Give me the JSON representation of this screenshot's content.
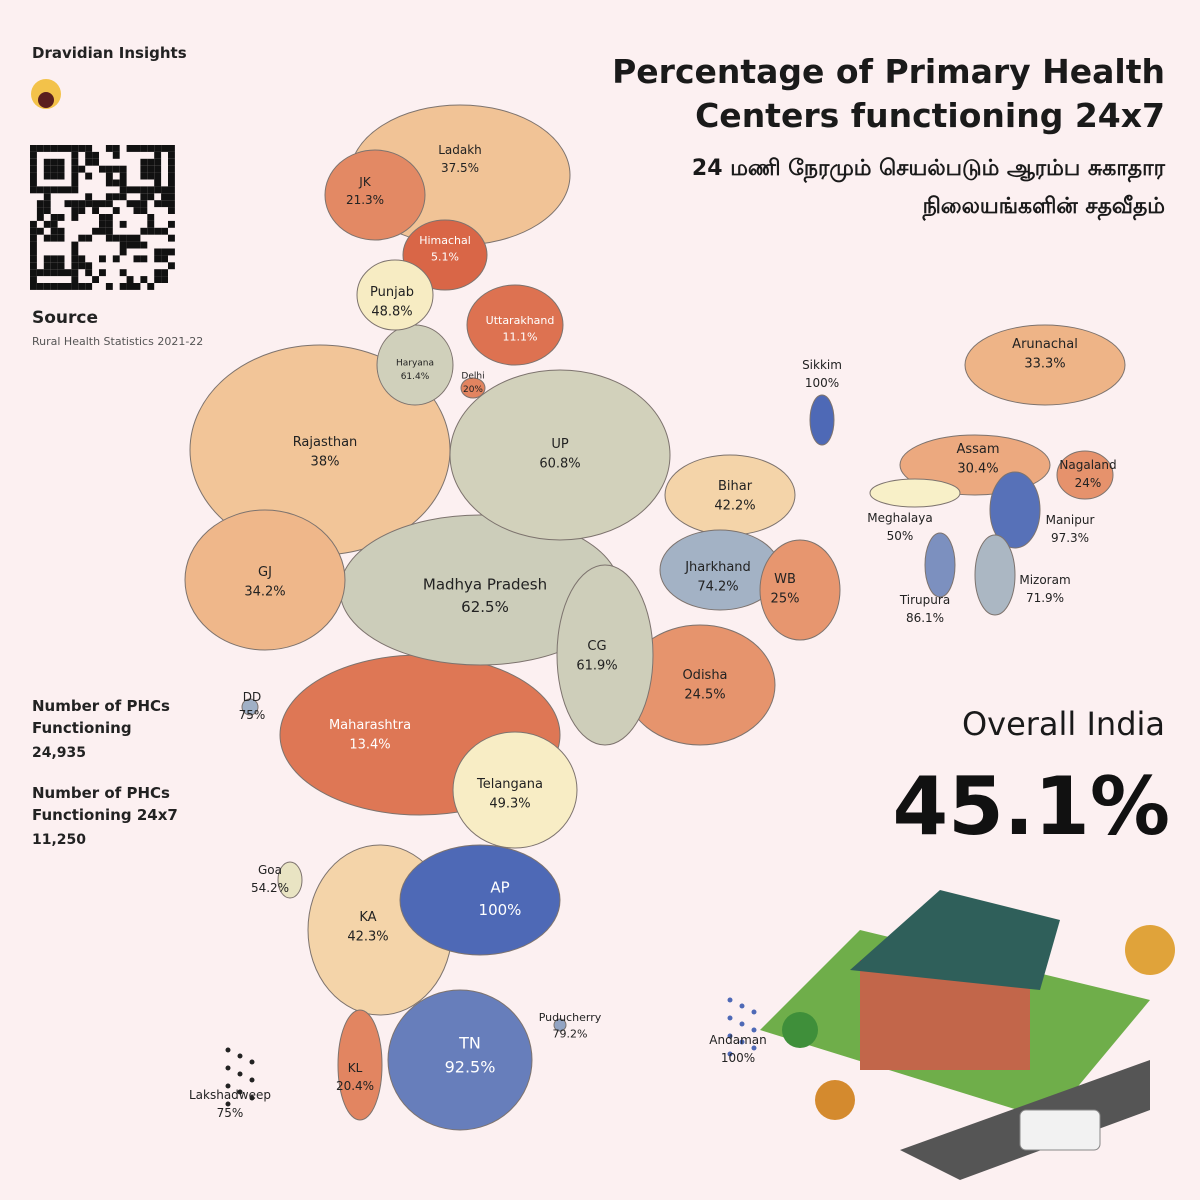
{
  "brand": "Dravidian Insights",
  "title": "Percentage of Primary Health Centers functioning 24x7",
  "subtitle_tamil": "24 மணி நேரமும் செயல்படும் ஆரம்ப சுகாதார நிலையங்களின் சதவீதம்",
  "source": {
    "label": "Source",
    "text": "Rural Health Statistics 2021-22"
  },
  "stats": [
    {
      "label": "Number of PHCs Functioning",
      "value": "24,935"
    },
    {
      "label": "Number of PHCs Functioning 24x7",
      "value": "11,250"
    }
  ],
  "overall": {
    "label": "Overall India",
    "value": 45.1,
    "value_label": "45.1%"
  },
  "map": {
    "regions": [
      {
        "name": "Ladakh",
        "value": 37.5,
        "value_label": "37.5%"
      },
      {
        "name": "JK",
        "value": 21.3,
        "value_label": "21.3%"
      },
      {
        "name": "Himachal",
        "value": 5.1,
        "value_label": "5.1%"
      },
      {
        "name": "Punjab",
        "value": 48.8,
        "value_label": "48.8%"
      },
      {
        "name": "Uttarakhand",
        "value": 11.1,
        "value_label": "11.1%"
      },
      {
        "name": "Haryana",
        "value": 61.4,
        "value_label": "61.4%"
      },
      {
        "name": "Delhi",
        "value": 20,
        "value_label": "20%"
      },
      {
        "name": "Rajasthan",
        "value": 38,
        "value_label": "38%"
      },
      {
        "name": "UP",
        "value": 60.8,
        "value_label": "60.8%"
      },
      {
        "name": "Bihar",
        "value": 42.2,
        "value_label": "42.2%"
      },
      {
        "name": "Sikkim",
        "value": 100,
        "value_label": "100%"
      },
      {
        "name": "Arunachal",
        "value": 33.3,
        "value_label": "33.3%"
      },
      {
        "name": "Assam",
        "value": 30.4,
        "value_label": "30.4%"
      },
      {
        "name": "Nagaland",
        "value": 24,
        "value_label": "24%"
      },
      {
        "name": "Meghalaya",
        "value": 50,
        "value_label": "50%"
      },
      {
        "name": "Manipur",
        "value": 97.3,
        "value_label": "97.3%"
      },
      {
        "name": "Mizoram",
        "value": 71.9,
        "value_label": "71.9%"
      },
      {
        "name": "Tirupura",
        "value": 86.1,
        "value_label": "86.1%"
      },
      {
        "name": "Jharkhand",
        "value": 74.2,
        "value_label": "74.2%"
      },
      {
        "name": "WB",
        "value": 25,
        "value_label": "25%"
      },
      {
        "name": "GJ",
        "value": 34.2,
        "value_label": "34.2%"
      },
      {
        "name": "DD",
        "value": 75,
        "value_label": "75%"
      },
      {
        "name": "Madhya Pradesh",
        "value": 62.5,
        "value_label": "62.5%"
      },
      {
        "name": "CG",
        "value": 61.9,
        "value_label": "61.9%"
      },
      {
        "name": "Odisha",
        "value": 24.5,
        "value_label": "24.5%"
      },
      {
        "name": "Maharashtra",
        "value": 13.4,
        "value_label": "13.4%"
      },
      {
        "name": "Telangana",
        "value": 49.3,
        "value_label": "49.3%"
      },
      {
        "name": "Goa",
        "value": 54.2,
        "value_label": "54.2%"
      },
      {
        "name": "AP",
        "value": 100,
        "value_label": "100%"
      },
      {
        "name": "KA",
        "value": 42.3,
        "value_label": "42.3%"
      },
      {
        "name": "Puducherry",
        "value": 79.2,
        "value_label": "79.2%"
      },
      {
        "name": "TN",
        "value": 92.5,
        "value_label": "92.5%"
      },
      {
        "name": "KL",
        "value": 20.4,
        "value_label": "20.4%"
      },
      {
        "name": "Lakshadweep",
        "value": 75,
        "value_label": "75%"
      },
      {
        "name": "Andaman",
        "value": 100,
        "value_label": "100%"
      }
    ]
  }
}
